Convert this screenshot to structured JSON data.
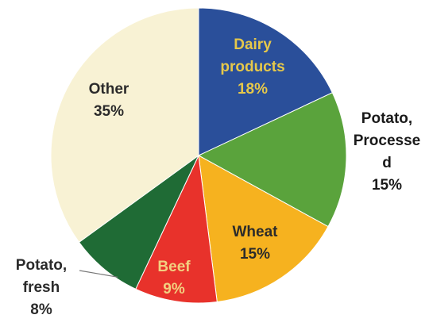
{
  "chart_data": {
    "type": "pie",
    "title": "",
    "start_angle_deg": 0,
    "direction": "clockwise",
    "slices": [
      {
        "label_lines": [
          "Dairy",
          "products",
          "18%"
        ],
        "category": "Dairy products",
        "value": 18,
        "color": "#2a4f9a",
        "label_color": "#e6c84a"
      },
      {
        "label_lines": [
          "Potato,",
          "Processe",
          "d",
          "15%"
        ],
        "category": "Potato, Processed",
        "value": 15,
        "color": "#5aa33c",
        "label_color": "#1a1a1a"
      },
      {
        "label_lines": [
          "Wheat",
          "15%"
        ],
        "category": "Wheat",
        "value": 15,
        "color": "#f6b21f",
        "label_color": "#2b2b2b"
      },
      {
        "label_lines": [
          "Beef",
          "9%"
        ],
        "category": "Beef",
        "value": 9,
        "color": "#e8322b",
        "label_color": "#f2d080"
      },
      {
        "label_lines": [
          "Potato,",
          "fresh",
          "8%"
        ],
        "category": "Potato, fresh",
        "value": 8,
        "color": "#1f6b35",
        "label_color": "#2b2b2b"
      },
      {
        "label_lines": [
          "Other",
          "35%"
        ],
        "category": "Other",
        "value": 35,
        "color": "#f8f2d4",
        "label_color": "#2b2b2b"
      }
    ]
  }
}
